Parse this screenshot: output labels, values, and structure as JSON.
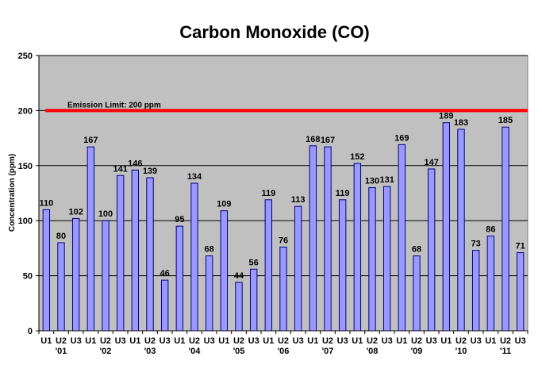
{
  "chart_data": {
    "type": "bar",
    "title": "Carbon Monoxide (CO)",
    "ylabel": "Concentration (ppm)",
    "xlabel": "",
    "ylim": [
      0,
      250
    ],
    "yticks": [
      0,
      50,
      100,
      150,
      200,
      250
    ],
    "grid": true,
    "categories": [
      "U1",
      "U2",
      "U3",
      "U1",
      "U2",
      "U3",
      "U1",
      "U2",
      "U3",
      "U1",
      "U2",
      "U3",
      "U1",
      "U2",
      "U3",
      "U1",
      "U2",
      "U3",
      "U1",
      "U2",
      "U3",
      "U1",
      "U2",
      "U3",
      "U1",
      "U2",
      "U3",
      "U1",
      "U2",
      "U3",
      "U1",
      "U2",
      "U3"
    ],
    "year_labels": [
      "'01",
      "'02",
      "'03",
      "'04",
      "'05",
      "'06",
      "'07",
      "'08",
      "'09",
      "'10",
      "'11"
    ],
    "values": [
      110,
      80,
      102,
      167,
      100,
      141,
      146,
      139,
      46,
      95,
      134,
      68,
      109,
      44,
      56,
      119,
      76,
      113,
      168,
      167,
      119,
      152,
      130,
      131,
      169,
      68,
      147,
      189,
      183,
      73,
      86,
      185,
      71
    ],
    "reference_line": {
      "label": "Emission  Limit: 200 ppm",
      "value": 200,
      "color": "#ff0000"
    },
    "colors": {
      "plot_bg": "#c0c0c0",
      "bar_fill": "#9999ff",
      "bar_stroke": "#000080"
    }
  }
}
